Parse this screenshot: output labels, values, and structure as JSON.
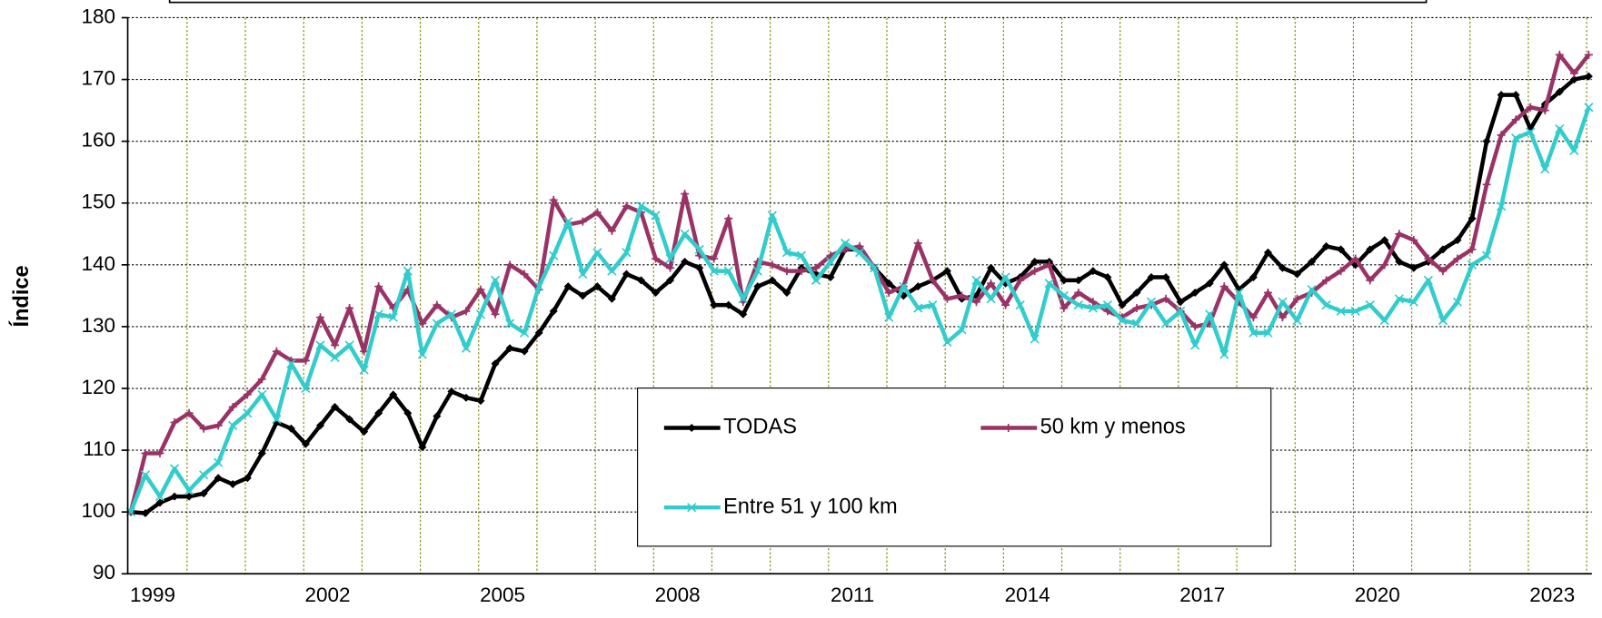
{
  "chart_data": {
    "type": "line",
    "y_label": "Índice",
    "categories": [
      null,
      "1999",
      null,
      null,
      null,
      null,
      null,
      null,
      null,
      null,
      null,
      null,
      null,
      "2002",
      null,
      null,
      null,
      null,
      null,
      null,
      null,
      null,
      null,
      null,
      null,
      "2005",
      null,
      null,
      null,
      null,
      null,
      null,
      null,
      null,
      null,
      null,
      null,
      "2008",
      null,
      null,
      null,
      null,
      null,
      null,
      null,
      null,
      null,
      null,
      null,
      "2011",
      null,
      null,
      null,
      null,
      null,
      null,
      null,
      null,
      null,
      null,
      null,
      "2014",
      null,
      null,
      null,
      null,
      null,
      null,
      null,
      null,
      null,
      null,
      null,
      "2017",
      null,
      null,
      null,
      null,
      null,
      null,
      null,
      null,
      null,
      null,
      null,
      "2020",
      null,
      null,
      null,
      null,
      null,
      null,
      null,
      null,
      null,
      null,
      null,
      "2023",
      null,
      null,
      null
    ],
    "ylim": [
      90,
      180
    ],
    "yticks": [
      90,
      100,
      110,
      120,
      130,
      140,
      150,
      160,
      170,
      180
    ],
    "grid": true,
    "series": [
      {
        "name": "TODAS",
        "color": "#000000",
        "marker": "diamond",
        "values": [
          100,
          99.8,
          101.5,
          102.5,
          102.5,
          103,
          105.5,
          104.5,
          105.5,
          109.5,
          114.5,
          113.5,
          111,
          114,
          117,
          115,
          113,
          116,
          119,
          116,
          110.5,
          115.5,
          119.5,
          118.5,
          118,
          124,
          126.5,
          126,
          129,
          132.5,
          136.5,
          135,
          136.5,
          134.5,
          138.5,
          137.5,
          135.5,
          137.5,
          140.5,
          139.5,
          133.5,
          133.5,
          132,
          136.5,
          137.5,
          135.5,
          139.5,
          138.5,
          138,
          142.5,
          142.5,
          139.5,
          137,
          135,
          136.5,
          137.5,
          139,
          134.5,
          135,
          139.5,
          137,
          138,
          140.5,
          140.5,
          137.5,
          137.5,
          139,
          138,
          133.5,
          135.5,
          138,
          138,
          134,
          135.5,
          137,
          140,
          136,
          138,
          142,
          139.5,
          138.5,
          140.5,
          143,
          142.5,
          140,
          142.5,
          144,
          140.5,
          139.5,
          140.5,
          142.5,
          144,
          147.5,
          160,
          167.5,
          167.5,
          162,
          166,
          168,
          170,
          170.5
        ]
      },
      {
        "name": "50 km y menos",
        "color": "#993366",
        "marker": "plus",
        "values": [
          100,
          109.5,
          109.5,
          114.5,
          116,
          113.5,
          114,
          117,
          119,
          121.5,
          126,
          124.5,
          124.5,
          131.5,
          127,
          133,
          126,
          136.5,
          133,
          136,
          130.5,
          133.5,
          131.5,
          132.5,
          136,
          132,
          140,
          138.5,
          136,
          150.5,
          146.5,
          147,
          148.5,
          145.5,
          149.5,
          148.5,
          141,
          139.5,
          151.5,
          141.5,
          141,
          147.5,
          134,
          140.5,
          140,
          139,
          139,
          139.5,
          141.5,
          142.5,
          143,
          139.5,
          135.5,
          136.5,
          143.5,
          137.5,
          134.5,
          135,
          134,
          137,
          133.5,
          137.5,
          139,
          140,
          133,
          135.5,
          134,
          132.5,
          131.5,
          133,
          133.5,
          134.5,
          132.5,
          130,
          130.5,
          136.5,
          134,
          131.5,
          135.5,
          131.5,
          134.5,
          135.5,
          137.5,
          139,
          141,
          137.5,
          140,
          145,
          144,
          141,
          139,
          141,
          142.5,
          153,
          161,
          163.5,
          165.5,
          165,
          174,
          171,
          174
        ]
      },
      {
        "name": "Entre 51 y 100 km",
        "color": "#33cccc",
        "marker": "cross",
        "values": [
          100,
          106,
          102.5,
          107,
          103.5,
          106,
          108,
          114,
          116,
          119,
          115,
          124,
          120,
          127,
          125,
          127,
          123,
          132,
          131.5,
          139,
          125.5,
          130.5,
          132,
          126.5,
          132,
          137.5,
          130.5,
          129,
          136.5,
          141.5,
          147,
          138.5,
          142,
          139,
          142,
          149.5,
          148,
          141,
          145,
          142.5,
          139,
          139,
          134.5,
          139,
          148,
          142,
          141.5,
          137.5,
          140.5,
          143.5,
          142,
          139.5,
          131.5,
          136.5,
          133,
          133.5,
          127.5,
          129.5,
          137.5,
          134.5,
          138,
          133.5,
          128,
          137,
          135,
          133.5,
          133,
          133.5,
          131,
          130.5,
          134,
          130.5,
          132.5,
          127,
          132,
          125.5,
          135.5,
          129,
          129,
          134,
          131,
          136,
          133.5,
          132.5,
          132.5,
          133.5,
          131,
          134.5,
          134,
          137.5,
          131,
          134,
          140,
          141.5,
          149.5,
          160.5,
          161.5,
          155.5,
          162,
          158.5,
          165.5
        ]
      }
    ]
  }
}
